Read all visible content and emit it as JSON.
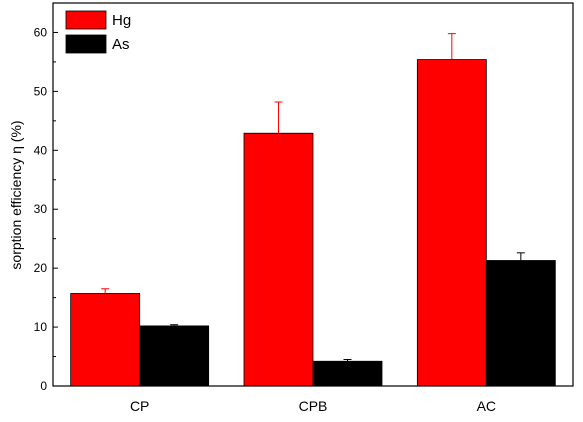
{
  "chart_data": {
    "type": "bar",
    "title": "",
    "xlabel": "",
    "ylabel": "sorption efficiency η (%)",
    "categories": [
      "CP",
      "CPB",
      "AC"
    ],
    "ylim": [
      0,
      65
    ],
    "yticks": [
      0,
      10,
      20,
      30,
      40,
      50,
      60
    ],
    "grid": false,
    "legend_position": "top-left",
    "series": [
      {
        "name": "Hg",
        "color": "#ff0000",
        "values": [
          15.7,
          42.9,
          55.4
        ],
        "errors": [
          0.8,
          5.3,
          4.4
        ]
      },
      {
        "name": "As",
        "color": "#000000",
        "values": [
          10.2,
          4.2,
          21.3
        ],
        "errors": [
          0.2,
          0.3,
          1.3
        ]
      }
    ]
  }
}
